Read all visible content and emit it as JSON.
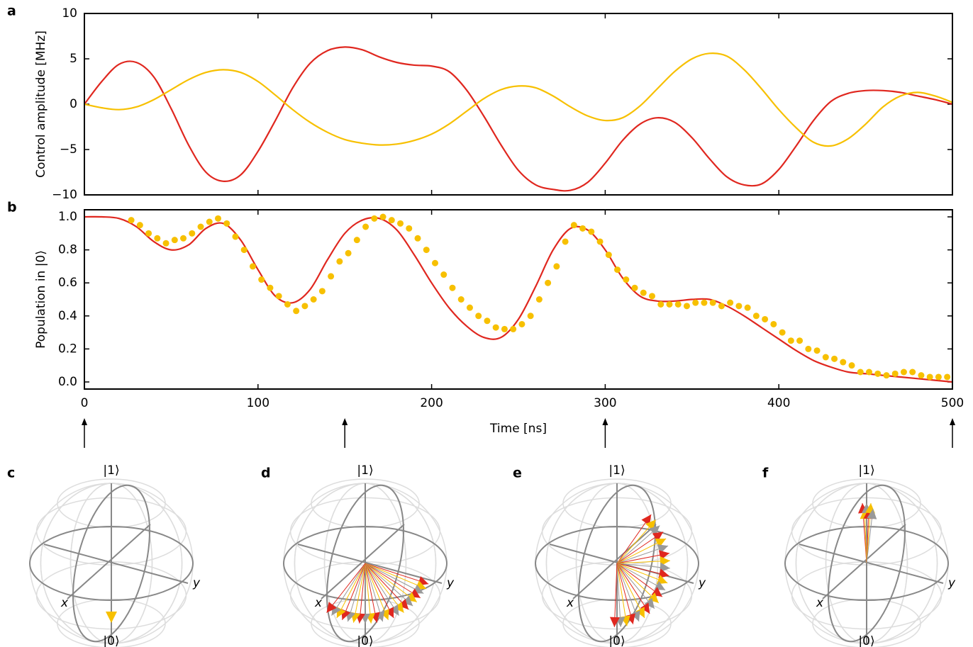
{
  "chart_data": [
    {
      "type": "line",
      "panel_label": "a",
      "ylabel": "Control amplitude [MHz]",
      "x": [
        0,
        10,
        20,
        30,
        40,
        50,
        60,
        70,
        80,
        90,
        100,
        110,
        120,
        130,
        140,
        150,
        160,
        170,
        180,
        190,
        200,
        210,
        220,
        230,
        240,
        250,
        260,
        270,
        280,
        290,
        300,
        310,
        320,
        330,
        340,
        350,
        360,
        370,
        380,
        390,
        400,
        410,
        420,
        430,
        440,
        450,
        460,
        470,
        480,
        490,
        500
      ],
      "xlim": [
        0,
        500
      ],
      "xticks": [
        0,
        100,
        200,
        300,
        400,
        500
      ],
      "ylim": [
        -10,
        10
      ],
      "yticks": [
        {
          "value": -10,
          "label": "−10"
        },
        {
          "value": -5,
          "label": "−5"
        },
        0,
        5,
        10
      ],
      "series": [
        {
          "color": "#e0271f",
          "values": [
            0,
            2.5,
            4.4,
            4.6,
            3.0,
            -0.5,
            -4.5,
            -7.5,
            -8.5,
            -7.8,
            -5.2,
            -1.8,
            1.8,
            4.5,
            5.9,
            6.3,
            6.0,
            5.2,
            4.6,
            4.3,
            4.2,
            3.6,
            1.6,
            -1.3,
            -4.5,
            -7.3,
            -8.9,
            -9.4,
            -9.5,
            -8.6,
            -6.5,
            -4.0,
            -2.2,
            -1.5,
            -2.0,
            -3.7,
            -6.0,
            -8.0,
            -8.9,
            -8.8,
            -7.2,
            -4.6,
            -1.8,
            0.3,
            1.2,
            1.5,
            1.5,
            1.3,
            0.9,
            0.5,
            0
          ]
        },
        {
          "color": "#f7c000",
          "values": [
            0,
            -0.4,
            -0.6,
            -0.3,
            0.5,
            1.6,
            2.7,
            3.5,
            3.8,
            3.5,
            2.5,
            1.0,
            -0.6,
            -2.0,
            -3.1,
            -3.9,
            -4.3,
            -4.5,
            -4.4,
            -4.0,
            -3.3,
            -2.2,
            -0.8,
            0.6,
            1.6,
            2.0,
            1.8,
            0.9,
            -0.3,
            -1.3,
            -1.8,
            -1.5,
            -0.2,
            1.7,
            3.6,
            5.0,
            5.6,
            5.3,
            3.8,
            1.7,
            -0.6,
            -2.6,
            -4.2,
            -4.6,
            -3.8,
            -2.2,
            -0.3,
            0.9,
            1.3,
            0.9,
            0.2
          ]
        }
      ]
    },
    {
      "type": "line",
      "panel_label": "b",
      "ylabel": "Population in |0⟩",
      "xlabel": "Time [ns]",
      "x": [
        0,
        10,
        20,
        30,
        40,
        50,
        60,
        70,
        80,
        90,
        100,
        110,
        120,
        130,
        140,
        150,
        160,
        170,
        180,
        190,
        200,
        210,
        220,
        230,
        240,
        250,
        260,
        270,
        280,
        290,
        300,
        310,
        320,
        330,
        340,
        350,
        360,
        370,
        380,
        390,
        400,
        410,
        420,
        430,
        440,
        450,
        460,
        470,
        480,
        490,
        500
      ],
      "xlim": [
        0,
        500
      ],
      "xticks": [
        0,
        100,
        200,
        300,
        400,
        500
      ],
      "ylim": [
        -0.043,
        1.043
      ],
      "yticks": [
        {
          "value": 0,
          "label": "0.0"
        },
        0.2,
        0.4,
        0.6,
        0.8,
        {
          "value": 1,
          "label": "1.0"
        }
      ],
      "series": [
        {
          "color": "#e0271f",
          "values": [
            1.0,
            1.0,
            0.99,
            0.94,
            0.85,
            0.8,
            0.83,
            0.93,
            0.96,
            0.86,
            0.68,
            0.52,
            0.48,
            0.56,
            0.74,
            0.9,
            0.98,
            0.99,
            0.92,
            0.77,
            0.6,
            0.45,
            0.34,
            0.27,
            0.27,
            0.38,
            0.58,
            0.8,
            0.93,
            0.92,
            0.8,
            0.63,
            0.52,
            0.49,
            0.49,
            0.5,
            0.5,
            0.46,
            0.4,
            0.33,
            0.26,
            0.19,
            0.13,
            0.09,
            0.06,
            0.05,
            0.04,
            0.03,
            0.02,
            0.01,
            0.0
          ]
        },
        {
          "type": "scatter",
          "color": "#f7c000",
          "x": [
            27,
            32,
            37,
            42,
            47,
            52,
            57,
            62,
            67,
            72,
            77,
            82,
            87,
            92,
            97,
            102,
            107,
            112,
            117,
            122,
            127,
            132,
            137,
            142,
            147,
            152,
            157,
            162,
            167,
            172,
            177,
            182,
            187,
            192,
            197,
            202,
            207,
            212,
            217,
            222,
            227,
            232,
            237,
            242,
            247,
            252,
            257,
            262,
            267,
            272,
            277,
            282,
            287,
            292,
            297,
            302,
            307,
            312,
            317,
            322,
            327,
            332,
            337,
            342,
            347,
            352,
            357,
            362,
            367,
            372,
            377,
            382,
            387,
            392,
            397,
            402,
            407,
            412,
            417,
            422,
            427,
            432,
            437,
            442,
            447,
            452,
            457,
            462,
            467,
            472,
            477,
            482,
            487,
            492,
            497
          ],
          "values": [
            0.98,
            0.95,
            0.9,
            0.87,
            0.84,
            0.86,
            0.87,
            0.9,
            0.94,
            0.97,
            0.99,
            0.96,
            0.88,
            0.8,
            0.7,
            0.62,
            0.57,
            0.52,
            0.47,
            0.43,
            0.46,
            0.5,
            0.55,
            0.64,
            0.73,
            0.78,
            0.86,
            0.94,
            0.99,
            1.0,
            0.98,
            0.96,
            0.93,
            0.87,
            0.8,
            0.72,
            0.65,
            0.57,
            0.5,
            0.45,
            0.4,
            0.37,
            0.33,
            0.32,
            0.32,
            0.35,
            0.4,
            0.5,
            0.6,
            0.7,
            0.85,
            0.95,
            0.93,
            0.91,
            0.85,
            0.77,
            0.68,
            0.62,
            0.57,
            0.54,
            0.52,
            0.47,
            0.47,
            0.47,
            0.46,
            0.48,
            0.48,
            0.48,
            0.46,
            0.48,
            0.46,
            0.45,
            0.4,
            0.38,
            0.35,
            0.3,
            0.25,
            0.25,
            0.2,
            0.19,
            0.15,
            0.14,
            0.12,
            0.1,
            0.06,
            0.06,
            0.05,
            0.04,
            0.05,
            0.06,
            0.06,
            0.04,
            0.03,
            0.03,
            0.03
          ]
        }
      ],
      "snapshot_times": [
        0,
        150,
        300,
        500
      ]
    }
  ],
  "bloch_spheres": [
    {
      "panel_label": "c",
      "top_label": "|1⟩",
      "bottom_label": "|0⟩",
      "x_label": "x",
      "y_label": "y"
    },
    {
      "panel_label": "d",
      "top_label": "|1⟩",
      "bottom_label": "|0⟩",
      "x_label": "x",
      "y_label": "y"
    },
    {
      "panel_label": "e",
      "top_label": "|1⟩",
      "bottom_label": "|0⟩",
      "x_label": "x",
      "y_label": "y"
    },
    {
      "panel_label": "f",
      "top_label": "|1⟩",
      "bottom_label": "|0⟩",
      "x_label": "x",
      "y_label": "y"
    }
  ]
}
